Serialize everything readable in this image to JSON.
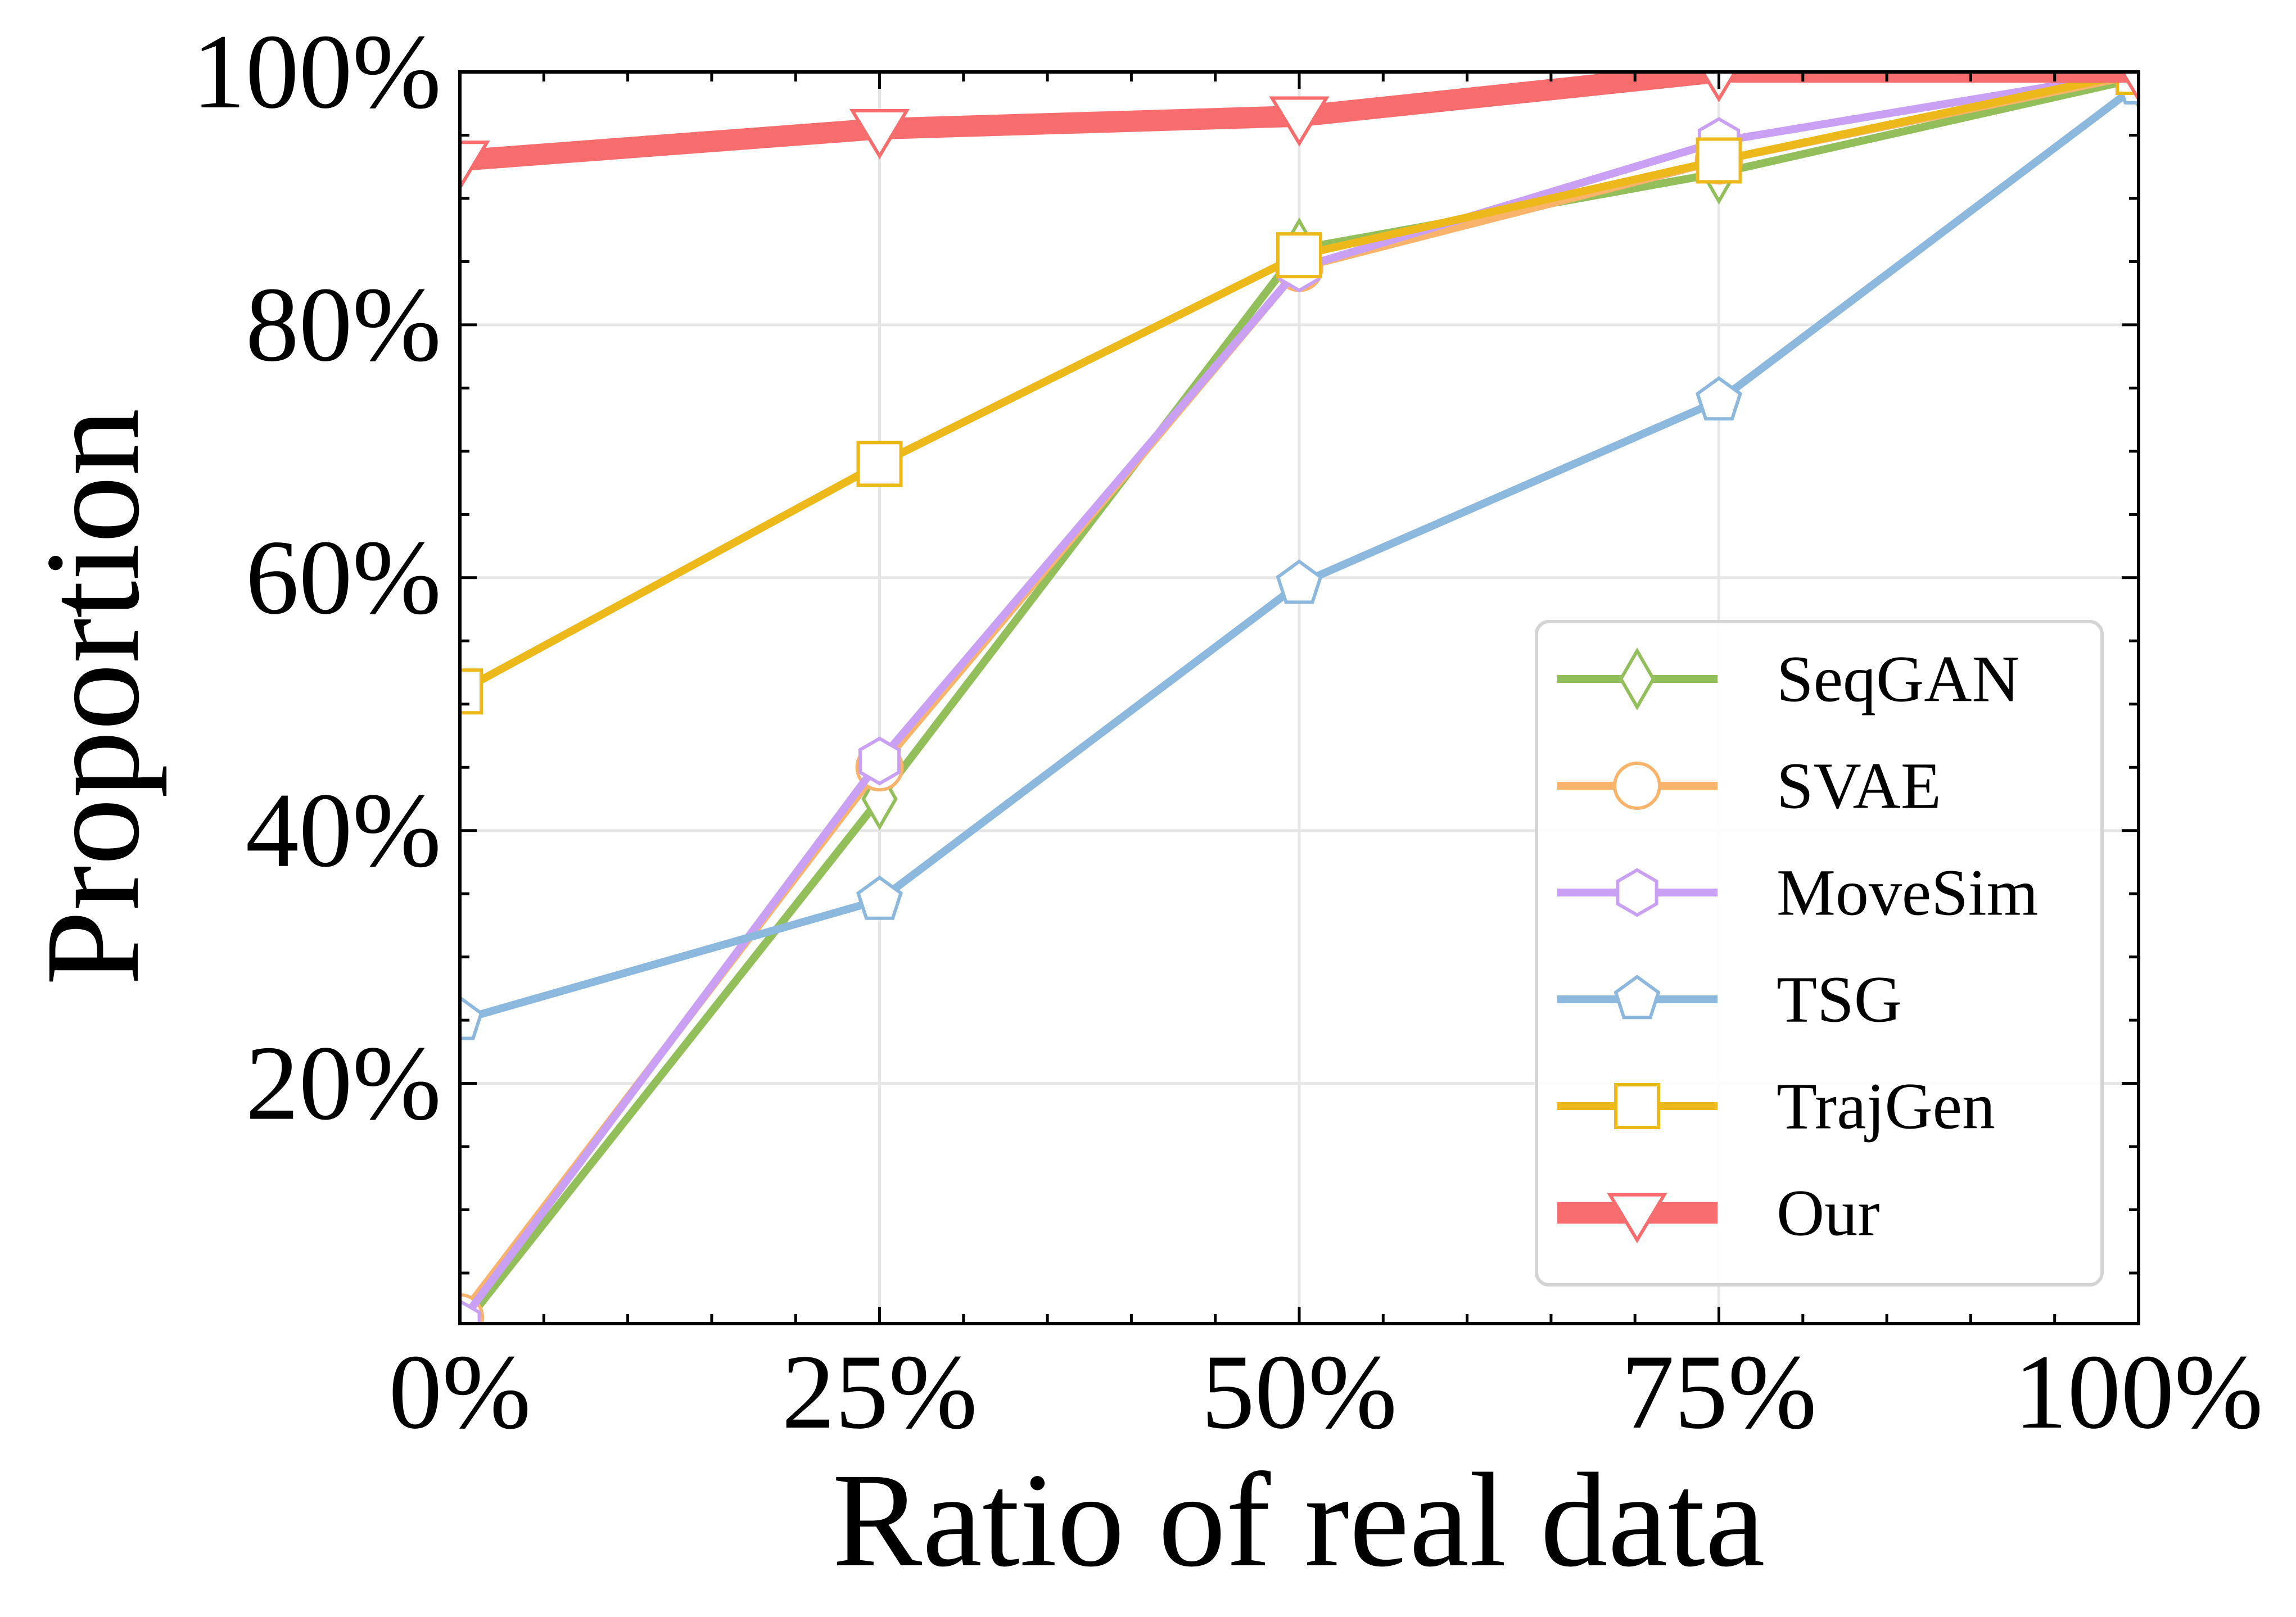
{
  "chart_data": {
    "type": "line",
    "title": "",
    "xlabel": "Ratio of real data",
    "ylabel": "Proportion",
    "x": [
      0,
      25,
      50,
      75,
      100
    ],
    "x_tick_labels": [
      "0%",
      "25%",
      "50%",
      "75%",
      "100%"
    ],
    "y_ticks": [
      20,
      40,
      60,
      80,
      100
    ],
    "y_tick_labels": [
      "20%",
      "40%",
      "60%",
      "80%",
      "100%"
    ],
    "xlim": [
      0,
      100
    ],
    "ylim": [
      1,
      100
    ],
    "grid": true,
    "legend_position": "lower-right",
    "series": [
      {
        "name": "SeqGAN",
        "marker": "diamond",
        "color": "#93bf5b",
        "values": [
          0.5,
          42.5,
          86,
          92,
          99.5
        ]
      },
      {
        "name": "SVAE",
        "marker": "circle",
        "color": "#f9b36b",
        "values": [
          1.5,
          45,
          84.5,
          93,
          99.8
        ]
      },
      {
        "name": "MoveSim",
        "marker": "hexagon",
        "color": "#c9a0f3",
        "values": [
          1,
          45.5,
          84.5,
          94.5,
          100
        ]
      },
      {
        "name": "TSG",
        "marker": "pentagon",
        "color": "#8cb8de",
        "values": [
          25,
          34.5,
          59.5,
          74,
          99
        ]
      },
      {
        "name": "TrajGen",
        "marker": "square",
        "color": "#edb81a",
        "values": [
          51,
          69,
          85.5,
          93,
          100
        ]
      },
      {
        "name": "Our",
        "marker": "triangle-down",
        "color": "#f76d6d",
        "values": [
          93,
          95.5,
          96.5,
          100,
          100
        ]
      }
    ]
  }
}
